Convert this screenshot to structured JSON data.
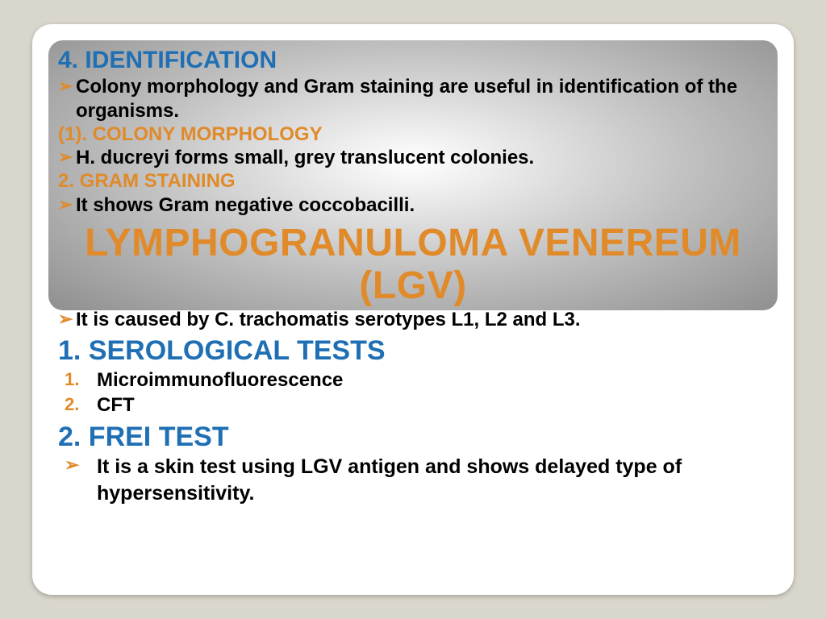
{
  "colors": {
    "page_bg": "#d9d6cb",
    "slide_bg": "#ffffff",
    "blue": "#1f6fb4",
    "orange": "#e08a2a",
    "black": "#000000",
    "gradient_center": "#ffffff",
    "gradient_edge": "#8f8f8f"
  },
  "typography": {
    "family": "Verdana",
    "h_blue_size": 30,
    "h_blue_big_size": 34,
    "h_orange_sub_size": 24,
    "body_size": 24,
    "title_size": 48
  },
  "layout": {
    "slide_width": 944,
    "slide_height": 708,
    "slide_radius": 24,
    "gradient_box_height": 335
  },
  "section4": {
    "heading": "4. IDENTIFICATION",
    "intro": "Colony morphology and Gram staining are useful in identification of the organisms.",
    "sub1_heading": "(1). COLONY MORPHOLOGY",
    "sub1_text": "H. ducreyi forms small, grey translucent colonies.",
    "sub2_heading": "2. GRAM STAINING",
    "sub2_text": "It shows Gram negative coccobacilli."
  },
  "title": "LYMPHOGRANULOMA VENEREUM (LGV)",
  "lgv": {
    "cause": "It is caused by C. trachomatis serotypes L1, L2 and L3.",
    "test1_heading": "1. SEROLOGICAL TESTS",
    "test1_items": [
      "Microimmunofluorescence",
      "CFT"
    ],
    "test2_heading": "2. FREI TEST",
    "test2_text": "It is a skin test using LGV antigen and shows delayed type of hypersensitivity."
  },
  "markers": {
    "arrow": "➢",
    "num1": "1.",
    "num2": "2."
  }
}
